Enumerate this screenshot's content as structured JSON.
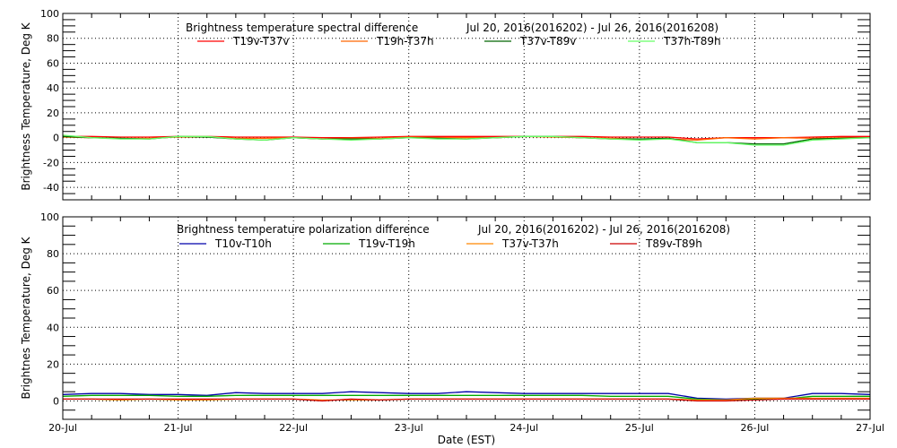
{
  "chart_data": [
    {
      "type": "line",
      "title": "Brightness temperature spectral difference",
      "subtitle": "Jul 20, 2016(2016202) - Jul 26, 2016(2016208)",
      "ylabel": "Brightness Temperature, Deg K",
      "xlabel": "",
      "ylim": [
        -50,
        100
      ],
      "yticks": [
        "100",
        "80",
        "60",
        "40",
        "20",
        "0",
        "-20",
        "-40"
      ],
      "xlim": [
        "2016-07-20",
        "2016-07-27"
      ],
      "grid": true,
      "legend_placement": "top",
      "x": [
        "07-20 00h",
        "07-20 06h",
        "07-20 12h",
        "07-20 18h",
        "07-21 00h",
        "07-21 06h",
        "07-21 12h",
        "07-21 18h",
        "07-22 00h",
        "07-22 06h",
        "07-22 12h",
        "07-22 18h",
        "07-23 00h",
        "07-23 06h",
        "07-23 12h",
        "07-23 18h",
        "07-24 00h",
        "07-24 06h",
        "07-24 12h",
        "07-24 18h",
        "07-25 00h",
        "07-25 06h",
        "07-25 12h",
        "07-25 18h",
        "07-26 00h",
        "07-26 06h",
        "07-26 12h",
        "07-26 18h",
        "07-27 00h"
      ],
      "series": [
        {
          "name": "T19v-T37v",
          "color": "#ff0000",
          "values": [
            1,
            1,
            0.5,
            0.5,
            1,
            1,
            0.5,
            0.5,
            0.5,
            0,
            0,
            0.5,
            1,
            1,
            1,
            1,
            1,
            1,
            1,
            0.5,
            0.5,
            0.5,
            -1,
            0,
            0,
            0,
            0.5,
            1,
            1
          ]
        },
        {
          "name": "T19h-T37h",
          "color": "#ff6600",
          "values": [
            0.5,
            0,
            -0.5,
            -0.5,
            0.5,
            0.5,
            -0.5,
            -0.5,
            0,
            -1,
            -0.5,
            -0.5,
            0.5,
            0,
            0,
            0,
            1,
            0.5,
            0,
            -0.5,
            -1,
            -1,
            -2,
            0,
            -1,
            0,
            -0.5,
            0,
            0
          ]
        },
        {
          "name": "T37v-T89v",
          "color": "#006400",
          "values": [
            1,
            0,
            -0.5,
            -1,
            1,
            0.5,
            -1,
            -2,
            0,
            -1,
            -1,
            -1,
            0,
            -0.5,
            -1,
            0,
            1,
            1,
            0,
            -1,
            -1,
            -0.5,
            -4,
            -4,
            -5,
            -5,
            -1,
            -0.5,
            0
          ]
        },
        {
          "name": "T37h-T89h",
          "color": "#66ff66",
          "values": [
            2,
            0,
            -1,
            -1,
            1,
            1,
            -1,
            -2,
            0,
            -1,
            -2,
            -1,
            0,
            -1,
            -1,
            0,
            1,
            1,
            0,
            -1,
            -2,
            -1,
            -4,
            -4,
            -6,
            -6,
            -2,
            -1,
            0
          ]
        }
      ]
    },
    {
      "type": "line",
      "title": "Brightness temperature polarization difference",
      "subtitle": "Jul 20, 2016(2016202) - Jul 26, 2016(2016208)",
      "ylabel": "Brightnes Temperature, Deg K",
      "xlabel": "Date (EST)",
      "ylim": [
        -10,
        100
      ],
      "yticks": [
        "100",
        "80",
        "60",
        "40",
        "20",
        "0"
      ],
      "xlim": [
        "2016-07-20",
        "2016-07-27"
      ],
      "xticks": [
        "20-Jul",
        "21-Jul",
        "22-Jul",
        "23-Jul",
        "24-Jul",
        "25-Jul",
        "26-Jul",
        "27-Jul"
      ],
      "grid": true,
      "legend_placement": "top",
      "x": [
        "07-20 00h",
        "07-20 06h",
        "07-20 12h",
        "07-20 18h",
        "07-21 00h",
        "07-21 06h",
        "07-21 12h",
        "07-21 18h",
        "07-22 00h",
        "07-22 06h",
        "07-22 12h",
        "07-22 18h",
        "07-23 00h",
        "07-23 06h",
        "07-23 12h",
        "07-23 18h",
        "07-24 00h",
        "07-24 06h",
        "07-24 12h",
        "07-24 18h",
        "07-25 00h",
        "07-25 06h",
        "07-25 12h",
        "07-25 18h",
        "07-26 00h",
        "07-26 06h",
        "07-26 12h",
        "07-26 18h",
        "07-27 00h"
      ],
      "series": [
        {
          "name": "T10v-T10h",
          "color": "#0000aa",
          "values": [
            3.5,
            4,
            4,
            3.5,
            3.5,
            3,
            4.5,
            4,
            4,
            4,
            5,
            4.5,
            4,
            4,
            5,
            4.5,
            4,
            4,
            4,
            4,
            4,
            4,
            1.5,
            1,
            1.5,
            1.5,
            4,
            4,
            3.5
          ]
        },
        {
          "name": "T19v-T19h",
          "color": "#00aa00",
          "values": [
            2.5,
            3,
            3,
            3,
            2.5,
            2.5,
            3,
            3,
            3,
            3,
            3,
            3,
            3,
            3,
            3,
            3,
            3,
            3,
            3,
            2.5,
            2.5,
            2.5,
            1,
            0.5,
            1,
            1,
            2.5,
            2.5,
            2.5
          ]
        },
        {
          "name": "T37v-T37h",
          "color": "#ff8800",
          "values": [
            1,
            1,
            0.5,
            1,
            0.5,
            0.5,
            1,
            1,
            1,
            0.5,
            0.5,
            0.5,
            1,
            1,
            1,
            1,
            1,
            1,
            1,
            1,
            1,
            1,
            0.5,
            0.5,
            1.5,
            1.5,
            1.5,
            1.5,
            1.5
          ]
        },
        {
          "name": "T89v-T89h",
          "color": "#cc0000",
          "values": [
            1,
            1,
            1,
            1,
            1,
            1,
            1,
            1,
            1,
            0,
            1,
            0.5,
            1,
            1,
            1,
            1,
            1,
            1,
            1,
            1,
            1,
            1,
            0,
            0,
            0.5,
            1,
            1,
            1,
            1
          ]
        }
      ]
    }
  ]
}
